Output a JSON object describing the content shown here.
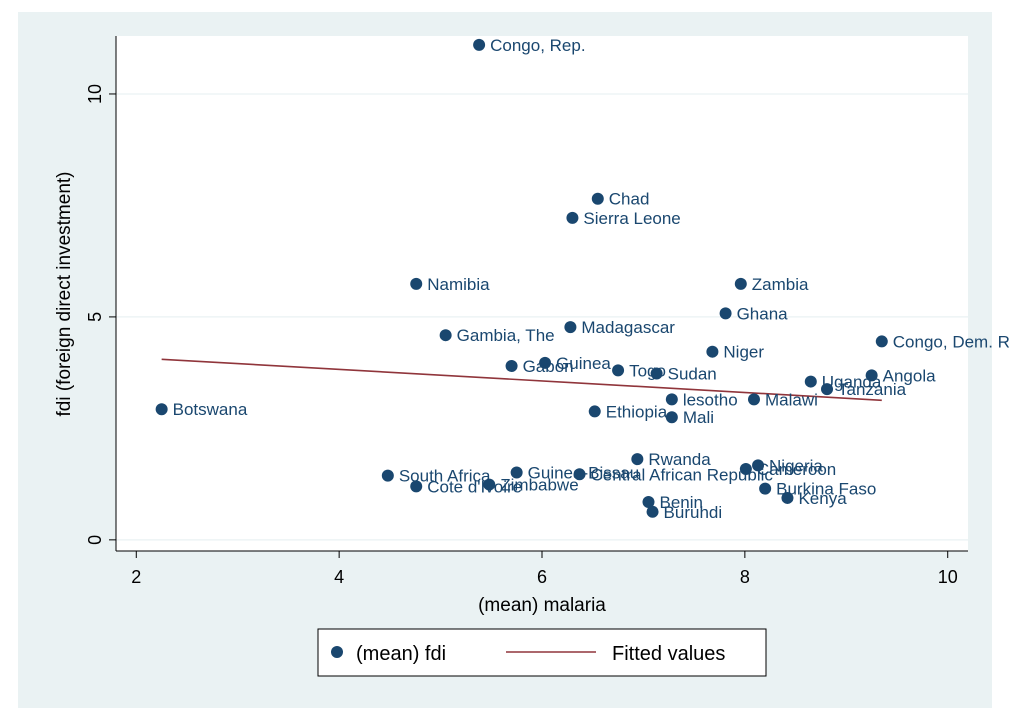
{
  "chart_data": {
    "type": "scatter",
    "title": "",
    "xlabel": "(mean) malaria",
    "ylabel": "fdi (foreign direct investment)",
    "xlim": [
      1.8,
      10.2
    ],
    "ylim": [
      -0.25,
      11.3
    ],
    "xticks": [
      2,
      4,
      6,
      8,
      10
    ],
    "yticks": [
      0,
      5,
      10
    ],
    "grid": true,
    "legend_position": "bottom",
    "colors": {
      "marker": "#1a476f",
      "fit": "#90353b",
      "background": "#eaf2f3",
      "plot": "#ffffff"
    },
    "series": [
      {
        "name": "(mean) fdi",
        "kind": "scatter",
        "points": [
          {
            "label": "Congo, Rep.",
            "x": 5.38,
            "y": 11.1
          },
          {
            "label": "Chad",
            "x": 6.55,
            "y": 7.65
          },
          {
            "label": "Sierra Leone",
            "x": 6.3,
            "y": 7.22
          },
          {
            "label": "Namibia",
            "x": 4.76,
            "y": 5.74
          },
          {
            "label": "Zambia",
            "x": 7.96,
            "y": 5.74
          },
          {
            "label": "Ghana",
            "x": 7.81,
            "y": 5.08
          },
          {
            "label": "Madagascar",
            "x": 6.28,
            "y": 4.77
          },
          {
            "label": "Gambia, The",
            "x": 5.05,
            "y": 4.59
          },
          {
            "label": "Congo, Dem. Rep.",
            "x": 9.35,
            "y": 4.45
          },
          {
            "label": "Niger",
            "x": 7.68,
            "y": 4.22
          },
          {
            "label": "Guinea",
            "x": 6.03,
            "y": 3.97
          },
          {
            "label": "Gabon",
            "x": 5.7,
            "y": 3.9
          },
          {
            "label": "Togo",
            "x": 6.75,
            "y": 3.8
          },
          {
            "label": "Sudan",
            "x": 7.13,
            "y": 3.73
          },
          {
            "label": "Angola",
            "x": 9.25,
            "y": 3.69
          },
          {
            "label": "Uganda",
            "x": 8.65,
            "y": 3.55
          },
          {
            "label": "Tanzania",
            "x": 8.81,
            "y": 3.38
          },
          {
            "label": "lesotho",
            "x": 7.28,
            "y": 3.15
          },
          {
            "label": "Malawi",
            "x": 8.09,
            "y": 3.15
          },
          {
            "label": "Botswana",
            "x": 2.25,
            "y": 2.93
          },
          {
            "label": "Ethiopia",
            "x": 6.52,
            "y": 2.88
          },
          {
            "label": "Mali",
            "x": 7.28,
            "y": 2.75
          },
          {
            "label": "Rwanda",
            "x": 6.94,
            "y": 1.81
          },
          {
            "label": "Nigeria",
            "x": 8.13,
            "y": 1.67
          },
          {
            "label": "Cameroon",
            "x": 8.01,
            "y": 1.59
          },
          {
            "label": "Guinea-Bissau",
            "x": 5.75,
            "y": 1.51
          },
          {
            "label": "Central African Republic",
            "x": 6.37,
            "y": 1.47
          },
          {
            "label": "South Africa",
            "x": 4.48,
            "y": 1.44
          },
          {
            "label": "Zimbabwe",
            "x": 5.48,
            "y": 1.24
          },
          {
            "label": "Cote d'Ivoire",
            "x": 4.76,
            "y": 1.2
          },
          {
            "label": "Burkina Faso",
            "x": 8.2,
            "y": 1.15
          },
          {
            "label": "Kenya",
            "x": 8.42,
            "y": 0.94
          },
          {
            "label": "Benin",
            "x": 7.05,
            "y": 0.85
          },
          {
            "label": "Buruhdi",
            "x": 7.09,
            "y": 0.63
          }
        ]
      },
      {
        "name": "Fitted values",
        "kind": "line",
        "x": [
          2.25,
          9.35
        ],
        "y": [
          4.05,
          3.13
        ]
      }
    ],
    "legend": [
      "(mean) fdi",
      "Fitted values"
    ]
  }
}
